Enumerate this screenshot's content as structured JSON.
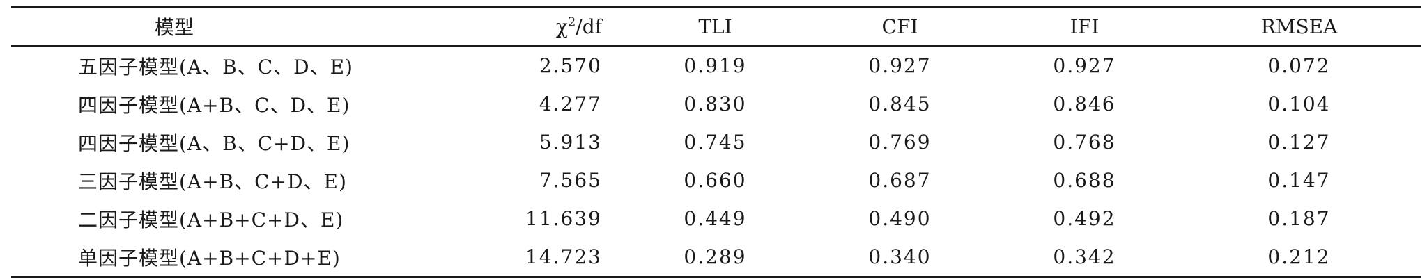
{
  "table": {
    "headers": {
      "model": "模型",
      "chi_base": "χ",
      "chi_sup": "2",
      "chi_rest": "/df",
      "tli": "TLI",
      "cfi": "CFI",
      "ifi": "IFI",
      "rmsea": "RMSEA"
    },
    "rows": [
      {
        "model": "五因子模型(A、B、C、D、E)",
        "chi_df": "2.570",
        "tli": "0.919",
        "cfi": "0.927",
        "ifi": "0.927",
        "rmsea": "0.072"
      },
      {
        "model": "四因子模型(A+B、C、D、E)",
        "chi_df": "4.277",
        "tli": "0.830",
        "cfi": "0.845",
        "ifi": "0.846",
        "rmsea": "0.104"
      },
      {
        "model": "四因子模型(A、B、C+D、E)",
        "chi_df": "5.913",
        "tli": "0.745",
        "cfi": "0.769",
        "ifi": "0.768",
        "rmsea": "0.127"
      },
      {
        "model": "三因子模型(A+B、C+D、E)",
        "chi_df": "7.565",
        "tli": "0.660",
        "cfi": "0.687",
        "ifi": "0.688",
        "rmsea": "0.147"
      },
      {
        "model": "二因子模型(A+B+C+D、E)",
        "chi_df": "11.639",
        "tli": "0.449",
        "cfi": "0.490",
        "ifi": "0.492",
        "rmsea": "0.187"
      },
      {
        "model": "单因子模型(A+B+C+D+E)",
        "chi_df": "14.723",
        "tli": "0.289",
        "cfi": "0.340",
        "ifi": "0.342",
        "rmsea": "0.212"
      }
    ]
  }
}
